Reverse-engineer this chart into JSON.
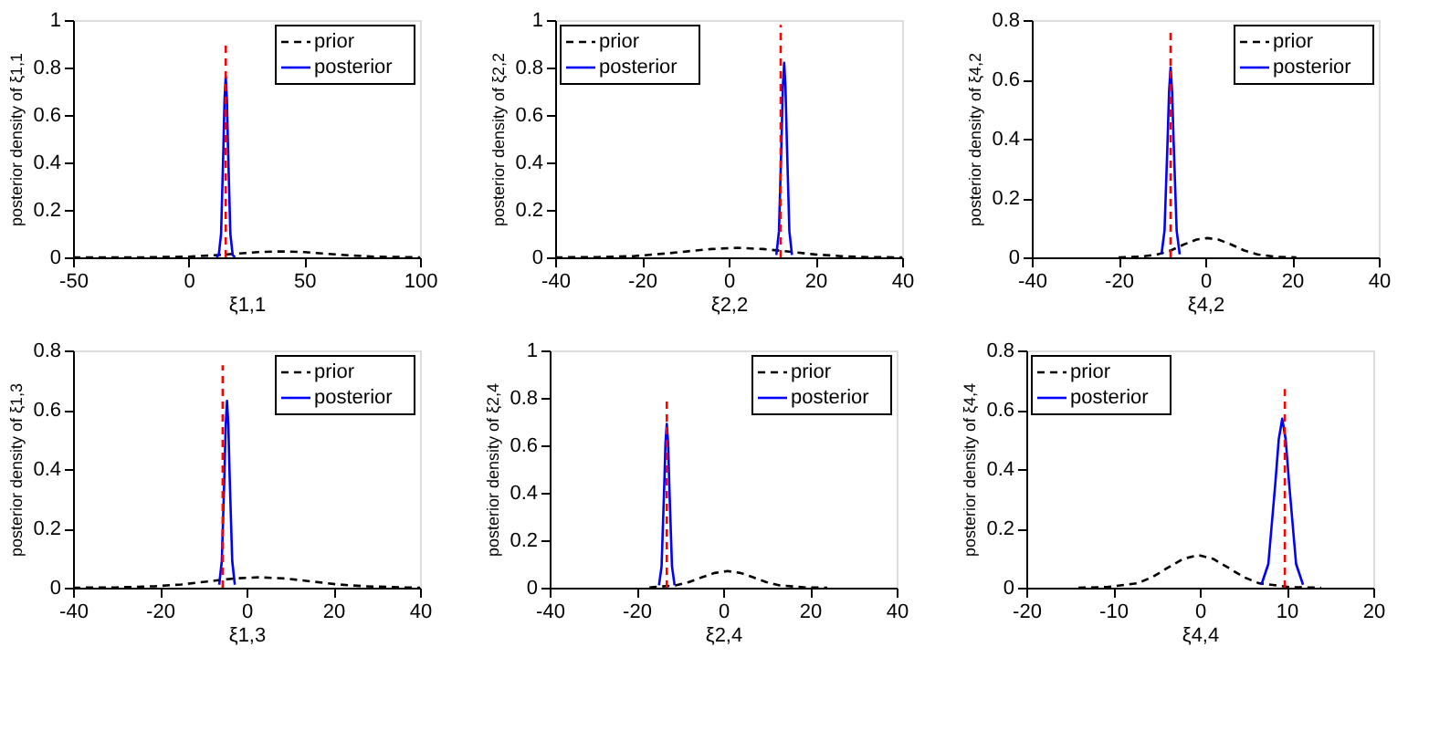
{
  "chart_data": [
    {
      "type": "line",
      "xlabel": "ξ1,1",
      "ylabel": "posterior density of ξ1,1",
      "xlim": [
        -50,
        100
      ],
      "xticks": [
        -50,
        0,
        50,
        100
      ],
      "ylim": [
        0,
        1
      ],
      "yticks": [
        0,
        0.2,
        0.4,
        0.6,
        0.8,
        1
      ],
      "grid": false,
      "legend": "top right",
      "marker": "none",
      "series": [
        {
          "name": "prior",
          "color": "#000000",
          "line_style": "dashed",
          "x": [
            -50,
            -20,
            0,
            10,
            20,
            30,
            40,
            50,
            60,
            70,
            80,
            100
          ],
          "values": [
            0,
            0,
            0.003,
            0.008,
            0.015,
            0.022,
            0.025,
            0.022,
            0.015,
            0.008,
            0.003,
            0
          ]
        },
        {
          "name": "posterior",
          "color": "#0000ff",
          "line_style": "solid",
          "x": [
            12,
            13,
            14,
            15,
            15.5,
            16,
            16.5,
            17,
            18,
            19,
            20
          ],
          "values": [
            0,
            0.01,
            0.1,
            0.46,
            0.67,
            0.76,
            0.67,
            0.46,
            0.1,
            0.01,
            0
          ]
        },
        {
          "color": "#ff0000",
          "line_style": "dashed",
          "x": [
            16,
            16
          ],
          "values": [
            0,
            0.9
          ]
        }
      ]
    },
    {
      "type": "line",
      "xlabel": "ξ2,2",
      "ylabel": "posterior density of ξ2,2",
      "xlim": [
        -40,
        40
      ],
      "xticks": [
        -40,
        -20,
        0,
        20,
        40
      ],
      "ylim": [
        0,
        1
      ],
      "yticks": [
        0,
        0.2,
        0.4,
        0.6,
        0.8,
        1
      ],
      "grid": false,
      "legend": "top left",
      "marker": "none",
      "series": [
        {
          "name": "prior",
          "color": "#000000",
          "line_style": "dashed",
          "x": [
            -40,
            -30,
            -22,
            -14,
            -8,
            -4,
            2,
            8,
            14,
            20,
            26,
            32,
            40
          ],
          "values": [
            0,
            0.001,
            0.005,
            0.017,
            0.028,
            0.035,
            0.04,
            0.035,
            0.024,
            0.012,
            0.005,
            0.001,
            0
          ]
        },
        {
          "name": "posterior",
          "color": "#0000ff",
          "line_style": "solid",
          "x": [
            11.0,
            11.6,
            12.2,
            12.5,
            12.8,
            13.1,
            13.4,
            14.0,
            14.6
          ],
          "values": [
            0.01,
            0.11,
            0.5,
            0.72,
            0.82,
            0.72,
            0.5,
            0.11,
            0.01
          ]
        },
        {
          "color": "#ff0000",
          "line_style": "dashed",
          "x": [
            12,
            12
          ],
          "values": [
            0,
            0.98
          ]
        }
      ]
    },
    {
      "type": "line",
      "xlabel": "ξ4,2",
      "ylabel": "posterior density of ξ4,2",
      "xlim": [
        -40,
        40
      ],
      "xticks": [
        -40,
        -20,
        0,
        20,
        40
      ],
      "ylim": [
        0,
        0.8
      ],
      "yticks": [
        0,
        0.2,
        0.4,
        0.6,
        0.8
      ],
      "grid": false,
      "legend": "top right",
      "marker": "none",
      "series": [
        {
          "name": "prior",
          "color": "#000000",
          "line_style": "dashed",
          "x": [
            -20,
            -15,
            -11,
            -8,
            -5,
            -2,
            0.5,
            3,
            6,
            9,
            12,
            16,
            21
          ],
          "values": [
            0,
            0.002,
            0.01,
            0.023,
            0.043,
            0.06,
            0.065,
            0.06,
            0.043,
            0.023,
            0.01,
            0.002,
            0
          ]
        },
        {
          "name": "posterior",
          "color": "#0000ff",
          "line_style": "solid",
          "x": [
            -10.1,
            -9.4,
            -8.7,
            -8.35,
            -8,
            -7.65,
            -7.3,
            -6.6,
            -5.9
          ],
          "values": [
            0.01,
            0.09,
            0.39,
            0.56,
            0.64,
            0.56,
            0.39,
            0.09,
            0.01
          ]
        },
        {
          "color": "#ff0000",
          "line_style": "dashed",
          "x": [
            -8,
            -8
          ],
          "values": [
            0,
            0.77
          ]
        }
      ]
    },
    {
      "type": "line",
      "xlabel": "ξ1,3",
      "ylabel": "posterior density of ξ1,3",
      "xlim": [
        -40,
        40
      ],
      "xticks": [
        -40,
        -20,
        0,
        20,
        40
      ],
      "ylim": [
        0,
        0.8
      ],
      "yticks": [
        0,
        0.2,
        0.4,
        0.6,
        0.8
      ],
      "grid": false,
      "legend": "top right",
      "marker": "none",
      "series": [
        {
          "name": "prior",
          "color": "#000000",
          "line_style": "dashed",
          "x": [
            -40,
            -30,
            -21,
            -15,
            -9,
            -3,
            3,
            9,
            15,
            21,
            27,
            36,
            40
          ],
          "values": [
            0,
            0.001,
            0.005,
            0.011,
            0.021,
            0.031,
            0.035,
            0.031,
            0.021,
            0.011,
            0.005,
            0.001,
            0
          ]
        },
        {
          "name": "posterior",
          "color": "#0000ff",
          "line_style": "solid",
          "x": [
            -6.3,
            -5.7,
            -5.1,
            -4.8,
            -4.5,
            -4.2,
            -3.9,
            -3.3,
            -2.7
          ],
          "values": [
            0.01,
            0.09,
            0.38,
            0.55,
            0.63,
            0.55,
            0.38,
            0.09,
            0.01
          ]
        },
        {
          "color": "#ff0000",
          "line_style": "dashed",
          "x": [
            -5.5,
            -5.5
          ],
          "values": [
            0,
            0.75
          ]
        }
      ]
    },
    {
      "type": "line",
      "xlabel": "ξ2,4",
      "ylabel": "posterior density of ξ2,4",
      "xlim": [
        -40,
        40
      ],
      "xticks": [
        -40,
        -20,
        0,
        20,
        40
      ],
      "ylim": [
        0,
        1
      ],
      "yticks": [
        0,
        0.2,
        0.4,
        0.6,
        0.8,
        1
      ],
      "grid": false,
      "legend": "top right",
      "marker": "none",
      "series": [
        {
          "name": "prior",
          "color": "#000000",
          "line_style": "dashed",
          "x": [
            -17,
            -11,
            -8,
            -5,
            -2,
            1,
            4,
            7,
            10,
            13,
            19,
            24
          ],
          "values": [
            0.001,
            0.01,
            0.023,
            0.043,
            0.062,
            0.07,
            0.062,
            0.043,
            0.023,
            0.01,
            0.001,
            0
          ]
        },
        {
          "name": "posterior",
          "color": "#0000ff",
          "line_style": "solid",
          "x": [
            -14.8,
            -14.2,
            -13.6,
            -13.3,
            -13,
            -12.7,
            -12.4,
            -11.8,
            -11.2
          ],
          "values": [
            0.01,
            0.09,
            0.42,
            0.61,
            0.69,
            0.61,
            0.42,
            0.09,
            0.01
          ]
        },
        {
          "color": "#ff0000",
          "line_style": "dashed",
          "x": [
            -13,
            -13
          ],
          "values": [
            0,
            0.8
          ]
        }
      ]
    },
    {
      "type": "line",
      "xlabel": "ξ4,4",
      "ylabel": "posterior density of ξ4,4",
      "xlim": [
        -20,
        20
      ],
      "xticks": [
        -20,
        -10,
        0,
        10,
        20
      ],
      "ylim": [
        0,
        0.8
      ],
      "yticks": [
        0,
        0.2,
        0.4,
        0.6,
        0.8
      ],
      "grid": false,
      "legend": "top left",
      "marker": "none",
      "series": [
        {
          "name": "prior",
          "color": "#000000",
          "line_style": "dashed",
          "x": [
            -14,
            -10.7,
            -7.2,
            -5.45,
            -3.7,
            -1.95,
            -0.2,
            1.55,
            3.3,
            5.05,
            6.8,
            10.3,
            14
          ],
          "values": [
            0,
            0.002,
            0.015,
            0.036,
            0.067,
            0.097,
            0.11,
            0.097,
            0.067,
            0.036,
            0.015,
            0.002,
            0
          ]
        },
        {
          "name": "posterior",
          "color": "#0000ff",
          "line_style": "solid",
          "x": [
            7.1,
            7.9,
            8.7,
            9.1,
            9.5,
            9.9,
            10.3,
            11.1,
            11.9
          ],
          "values": [
            0.01,
            0.08,
            0.35,
            0.5,
            0.57,
            0.5,
            0.35,
            0.08,
            0.01
          ]
        },
        {
          "color": "#ff0000",
          "line_style": "dashed",
          "x": [
            9.8,
            9.8
          ],
          "values": [
            0,
            0.67
          ]
        }
      ]
    }
  ]
}
